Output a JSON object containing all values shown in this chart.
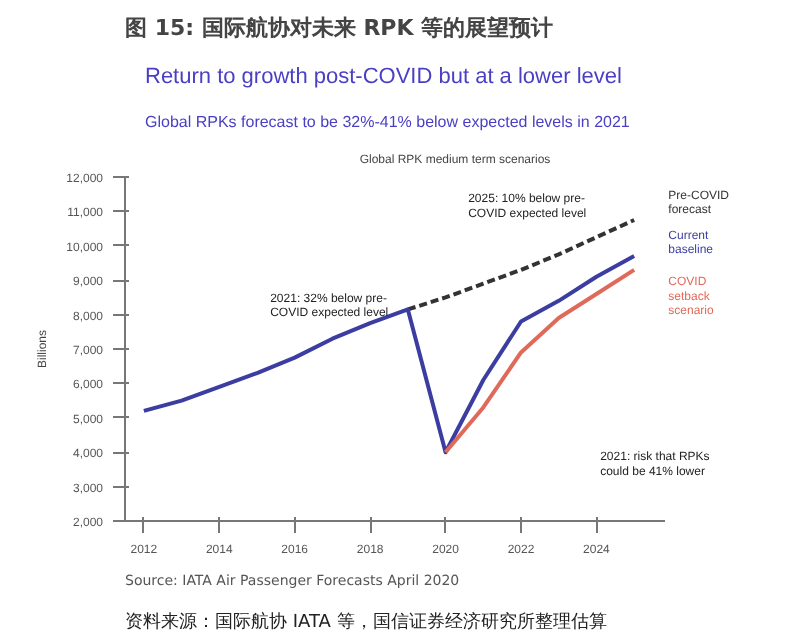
{
  "chart_data": {
    "type": "line",
    "title": "图 15: 国际航协对未来 RPK 等的展望预计",
    "subtitle": "Return to growth post-COVID but at a lower level",
    "annotations": [
      "Global RPKs forecast to be 32%-41% below expected levels in 2021",
      "Global RPK medium term scenarios",
      "2021: 32% below pre-COVID expected level",
      "2025: 10% below pre-COVID expected level",
      "2021: risk that RPKs could be 41% lower",
      "Source: IATA Air Passenger Forecasts April 2020",
      "资料来源：国际航协 IATA 等，国信证券经济研究所整理估算"
    ],
    "ylabel": "Billions",
    "series": [
      {
        "name": "Pre-COVID forecast",
        "color": "#333333",
        "line_style": "dashed",
        "x": [
          2019,
          2020,
          2021,
          2022,
          2023,
          2024,
          2025
        ],
        "values": [
          8150,
          8500,
          8900,
          9300,
          9750,
          10250,
          10750
        ]
      },
      {
        "name": "Current baseline",
        "color": "#3b3ea0",
        "x": [
          2012,
          2013,
          2014,
          2015,
          2016,
          2017,
          2018,
          2019,
          2020,
          2021,
          2022,
          2023,
          2024,
          2025
        ],
        "values": [
          5200,
          5500,
          5900,
          6300,
          6750,
          7300,
          7750,
          8150,
          4000,
          6100,
          7800,
          8400,
          9100,
          9700
        ]
      },
      {
        "name": "COVID setback scenario",
        "color": "#e06a5a",
        "x": [
          2020,
          2021,
          2022,
          2023,
          2024,
          2025
        ],
        "values": [
          4000,
          5300,
          6900,
          7900,
          8600,
          9300
        ]
      }
    ],
    "xlim": [
      2011.5,
      2025.8
    ],
    "xticks": [
      2012,
      2014,
      2016,
      2018,
      2020,
      2022,
      2024
    ],
    "ylim": [
      2000,
      12000
    ],
    "yticks": [
      {
        "value": 2000,
        "label": "2,000"
      },
      {
        "value": 3000,
        "label": "3,000"
      },
      {
        "value": 4000,
        "label": "4,000"
      },
      {
        "value": 5000,
        "label": "5,000"
      },
      {
        "value": 6000,
        "label": "6,000"
      },
      {
        "value": 7000,
        "label": "7,000"
      },
      {
        "value": 8000,
        "label": "8,000"
      },
      {
        "value": 9000,
        "label": "9,000"
      },
      {
        "value": 10000,
        "label": "10,000"
      },
      {
        "value": 11000,
        "label": "11,000"
      },
      {
        "value": 12000,
        "label": "12,000"
      }
    ],
    "grid": false
  }
}
